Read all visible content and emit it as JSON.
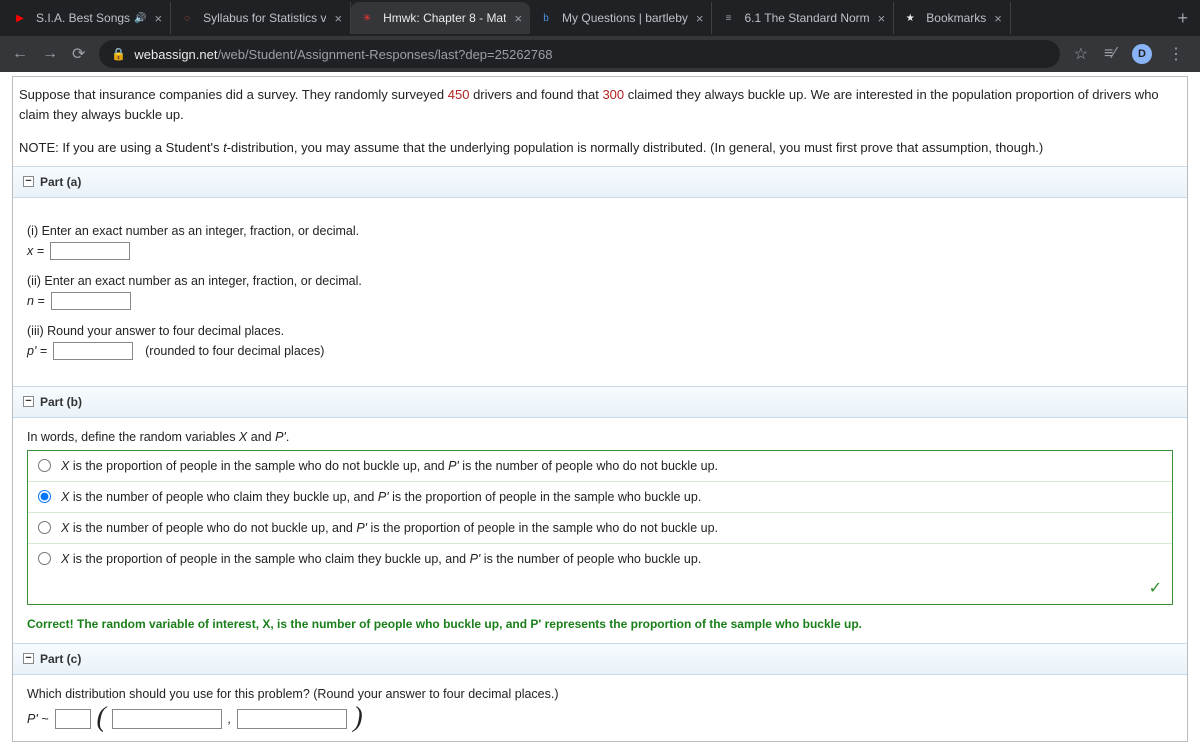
{
  "browser": {
    "tabs": [
      {
        "title": "S.I.A. Best Songs",
        "favicon": "▶",
        "favicon_color": "#ff0000",
        "audio": true
      },
      {
        "title": "Syllabus for Statistics v",
        "favicon": "◌",
        "favicon_color": "#ff6b4a"
      },
      {
        "title": "Hmwk: Chapter 8 - Mat",
        "favicon": "✳",
        "favicon_color": "#ff3333",
        "active": true
      },
      {
        "title": "My Questions | bartleby",
        "favicon": "b",
        "favicon_color": "#4a90e2"
      },
      {
        "title": "6.1 The Standard Norm",
        "favicon": "≡",
        "favicon_color": "#9aa0a6"
      },
      {
        "title": "Bookmarks",
        "favicon": "★",
        "favicon_color": "#e8eaed"
      }
    ],
    "url_host": "webassign.net",
    "url_path": "/web/Student/Assignment-Responses/last?dep=25262768",
    "avatar_letter": "D"
  },
  "question": {
    "intro_1a": "Suppose that insurance companies did a survey. They randomly surveyed ",
    "intro_num1": "450",
    "intro_1b": " drivers and found that ",
    "intro_num2": "300",
    "intro_1c": " claimed they always buckle up. We are interested in the population proportion of drivers who claim they always buckle up.",
    "note_a": "NOTE: If you are using a Student's ",
    "note_t": "t",
    "note_b": "-distribution, you may assume that the underlying population is normally distributed. (In general, you must first prove that assumption, though.)"
  },
  "part_a": {
    "header": "Part (a)",
    "i_prompt": "(i) Enter an exact number as an integer, fraction, or decimal.",
    "i_label": "x =",
    "ii_prompt": "(ii) Enter an exact number as an integer, fraction, or decimal.",
    "ii_label": "n =",
    "iii_prompt": "(iii) Round your answer to four decimal places.",
    "iii_label": "p' =",
    "iii_after": "(rounded to four decimal places)"
  },
  "part_b": {
    "header": "Part (b)",
    "prompt_a": "In words, define the random variables ",
    "prompt_x": "X",
    "prompt_b": " and ",
    "prompt_p": "P'",
    "prompt_c": ".",
    "options": [
      "X is the proportion of people in the sample who do not buckle up, and P' is the number of people who do not buckle up.",
      "X is the number of people who claim they buckle up, and P' is the proportion of people in the sample who buckle up.",
      "X is the number of people who do not buckle up, and P' is the proportion of people in the sample who do not buckle up.",
      "X is the proportion of people in the sample who claim they buckle up, and P' is the number of people who buckle up."
    ],
    "selected_index": 1,
    "correct_msg": "Correct! The random variable of interest, X, is the number of people who buckle up, and P' represents the proportion of the sample who buckle up."
  },
  "part_c": {
    "header": "Part (c)",
    "prompt": "Which distribution should you use for this problem? (Round your answer to four decimal places.)",
    "label": "P' ~",
    "comma": ","
  }
}
